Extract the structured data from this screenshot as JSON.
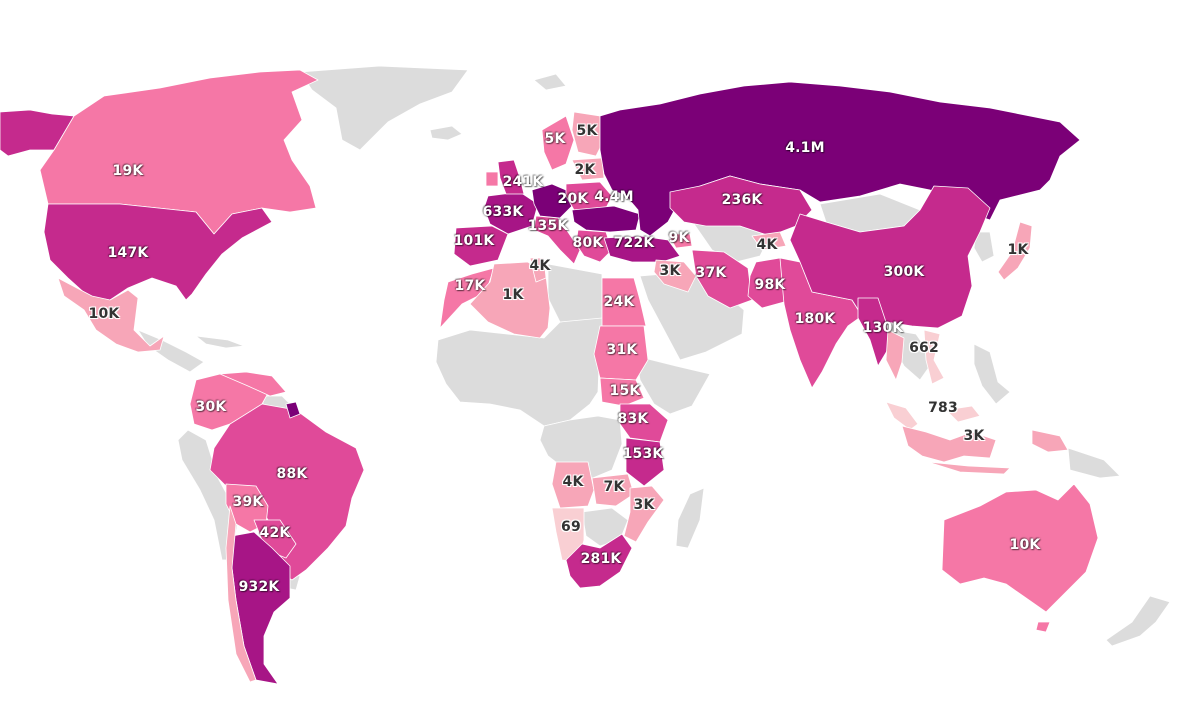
{
  "colors": {
    "no_data": "#dcdcdc",
    "ocean": "#ffffff",
    "scale": [
      "#f9cfd3",
      "#f7a6b8",
      "#f577a6",
      "#e04a99",
      "#c52a8d",
      "#a71586",
      "#7b0077"
    ]
  },
  "regions": [
    {
      "name": "russia",
      "label": "4.1M",
      "value": 4100000,
      "level": 6
    },
    {
      "name": "germany-region",
      "label": "4.4M",
      "value": 4400000,
      "level": 6
    },
    {
      "name": "argentina",
      "label": "932K",
      "value": 932000,
      "level": 5
    },
    {
      "name": "turkey",
      "label": "722K",
      "value": 722000,
      "level": 5
    },
    {
      "name": "france",
      "label": "633K",
      "value": 633000,
      "level": 5
    },
    {
      "name": "china",
      "label": "300K",
      "value": 300000,
      "level": 4
    },
    {
      "name": "south-africa",
      "label": "281K",
      "value": 281000,
      "level": 4
    },
    {
      "name": "united-kingdom",
      "label": "241K",
      "value": 241000,
      "level": 4
    },
    {
      "name": "kazakhstan",
      "label": "236K",
      "value": 236000,
      "level": 4
    },
    {
      "name": "india",
      "label": "180K",
      "value": 180000,
      "level": 3
    },
    {
      "name": "tanzania",
      "label": "153K",
      "value": 153000,
      "level": 4
    },
    {
      "name": "usa",
      "label": "147K",
      "value": 147000,
      "level": 4
    },
    {
      "name": "italy",
      "label": "135K",
      "value": 135000,
      "level": 3
    },
    {
      "name": "myanmar",
      "label": "130K",
      "value": 130000,
      "level": 4
    },
    {
      "name": "spain",
      "label": "101K",
      "value": 101000,
      "level": 4
    },
    {
      "name": "pakistan",
      "label": "98K",
      "value": 98000,
      "level": 3
    },
    {
      "name": "brazil",
      "label": "88K",
      "value": 88000,
      "level": 3
    },
    {
      "name": "kenya",
      "label": "83K",
      "value": 83000,
      "level": 3
    },
    {
      "name": "balkans",
      "label": "80K",
      "value": 80000,
      "level": 3
    },
    {
      "name": "paraguay",
      "label": "42K",
      "value": 42000,
      "level": 3
    },
    {
      "name": "bolivia",
      "label": "39K",
      "value": 39000,
      "level": 2
    },
    {
      "name": "iran",
      "label": "37K",
      "value": 37000,
      "level": 3
    },
    {
      "name": "sudan",
      "label": "31K",
      "value": 31000,
      "level": 2
    },
    {
      "name": "colombia",
      "label": "30K",
      "value": 30000,
      "level": 2
    },
    {
      "name": "egypt",
      "label": "24K",
      "value": 24000,
      "level": 2
    },
    {
      "name": "poland",
      "label": "20K",
      "value": 20000,
      "level": 3
    },
    {
      "name": "canada",
      "label": "19K",
      "value": 19000,
      "level": 2
    },
    {
      "name": "morocco",
      "label": "17K",
      "value": 17000,
      "level": 2
    },
    {
      "name": "south-sudan",
      "label": "15K",
      "value": 15000,
      "level": 2
    },
    {
      "name": "mexico",
      "label": "10K",
      "value": 10000,
      "level": 1
    },
    {
      "name": "australia",
      "label": "10K",
      "value": 10000,
      "level": 2
    },
    {
      "name": "georgia",
      "label": "9K",
      "value": 9000,
      "level": 2
    },
    {
      "name": "zambia",
      "label": "7K",
      "value": 7000,
      "level": 1
    },
    {
      "name": "sweden",
      "label": "5K",
      "value": 5000,
      "level": 2
    },
    {
      "name": "finland",
      "label": "5K",
      "value": 5000,
      "level": 1
    },
    {
      "name": "tunisia",
      "label": "4K",
      "value": 4000,
      "level": 1
    },
    {
      "name": "angola",
      "label": "4K",
      "value": 4000,
      "level": 1
    },
    {
      "name": "kyrgyzstan",
      "label": "4K",
      "value": 4000,
      "level": 1
    },
    {
      "name": "iraq",
      "label": "3K",
      "value": 3000,
      "level": 1
    },
    {
      "name": "mozambique",
      "label": "3K",
      "value": 3000,
      "level": 1
    },
    {
      "name": "indonesia",
      "label": "3K",
      "value": 3000,
      "level": 1
    },
    {
      "name": "latvia",
      "label": "2K",
      "value": 2000,
      "level": 1
    },
    {
      "name": "algeria",
      "label": "1K",
      "value": 1000,
      "level": 1
    },
    {
      "name": "japan",
      "label": "1K",
      "value": 1000,
      "level": 1
    },
    {
      "name": "malaysia",
      "label": "783",
      "value": 783,
      "level": 0
    },
    {
      "name": "vietnam",
      "label": "662",
      "value": 662,
      "level": 0
    },
    {
      "name": "namibia",
      "label": "69",
      "value": 69,
      "level": 0
    }
  ]
}
